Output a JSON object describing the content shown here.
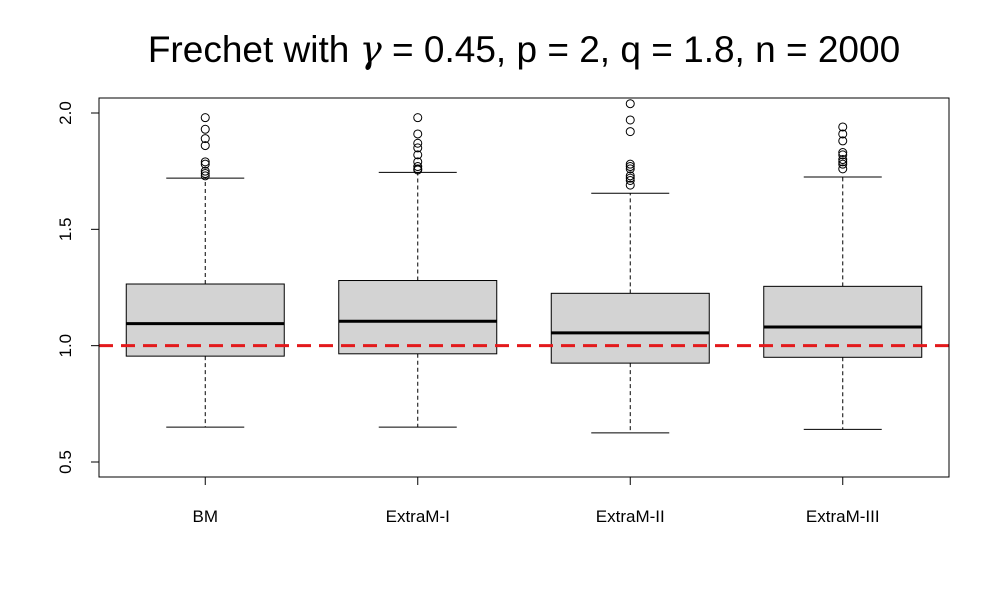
{
  "chart_data": {
    "type": "box",
    "title": "Frechet with γ = 0.45, p = 2, q = 1.8, n = 2000",
    "title_parts": {
      "prefix": "Frechet with ",
      "gamma_symbol": "γ",
      "suffix": " = 0.45, p = 2, q = 1.8, n = 2000"
    },
    "xlabel": "",
    "ylabel": "",
    "ylim": [
      0.45,
      2.03
    ],
    "yticks": [
      0.5,
      1.0,
      1.5,
      2.0
    ],
    "ytick_labels": [
      "0.5",
      "1.0",
      "1.5",
      "2.0"
    ],
    "reference_line": {
      "y": 1.0,
      "color": "#e31a1c",
      "style": "dashed"
    },
    "box_fill": "#d3d3d3",
    "categories": [
      "BM",
      "ExtraM-I",
      "ExtraM-II",
      "ExtraM-III"
    ],
    "series": [
      {
        "category": "BM",
        "whisker_low": 0.65,
        "q1": 0.955,
        "median": 1.095,
        "q3": 1.265,
        "whisker_high": 1.72,
        "outliers": [
          1.73,
          1.74,
          1.75,
          1.78,
          1.79,
          1.86,
          1.89,
          1.93,
          1.98
        ]
      },
      {
        "category": "ExtraM-I",
        "whisker_low": 0.65,
        "q1": 0.965,
        "median": 1.105,
        "q3": 1.28,
        "whisker_high": 1.745,
        "outliers": [
          1.755,
          1.76,
          1.77,
          1.79,
          1.82,
          1.85,
          1.87,
          1.91,
          1.98
        ]
      },
      {
        "category": "ExtraM-II",
        "whisker_low": 0.625,
        "q1": 0.925,
        "median": 1.055,
        "q3": 1.225,
        "whisker_high": 1.655,
        "outliers": [
          1.69,
          1.71,
          1.72,
          1.73,
          1.76,
          1.77,
          1.78,
          1.92,
          1.97,
          2.04
        ]
      },
      {
        "category": "ExtraM-III",
        "whisker_low": 0.64,
        "q1": 0.95,
        "median": 1.08,
        "q3": 1.255,
        "whisker_high": 1.725,
        "outliers": [
          1.76,
          1.78,
          1.79,
          1.8,
          1.82,
          1.83,
          1.88,
          1.91,
          1.94
        ]
      }
    ]
  }
}
